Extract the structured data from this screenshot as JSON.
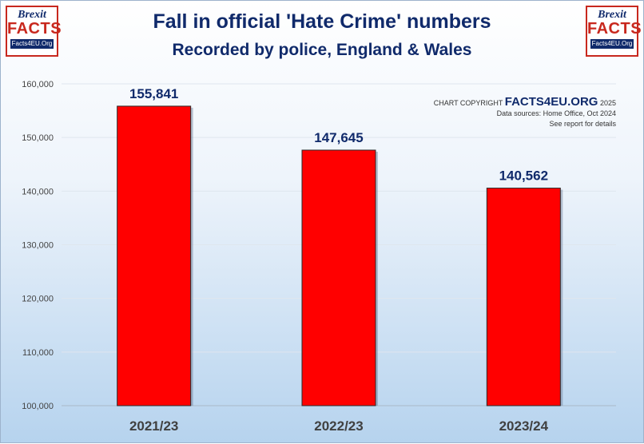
{
  "header": {
    "title": "Fall in official 'Hate Crime' numbers",
    "subtitle": "Recorded by police, England & Wales"
  },
  "logo": {
    "line1": "Brexit",
    "line2": "FACTS",
    "line3": "Facts4EU.Org"
  },
  "credit": {
    "prefix": "CHART COPYRIGHT",
    "brand": "FACTS4EU.ORG",
    "year": "2025",
    "sources": "Data sources: Home Office, Oct 2024",
    "note": "See report for details"
  },
  "colors": {
    "bar": "#ff0000",
    "title": "#102a6b"
  },
  "chart_data": {
    "type": "bar",
    "title": "Fall in official 'Hate Crime' numbers",
    "subtitle": "Recorded by police, England & Wales",
    "categories": [
      "2021/23",
      "2022/23",
      "2023/24"
    ],
    "values": [
      155841,
      147645,
      140562
    ],
    "value_labels": [
      "155,841",
      "147,645",
      "140,562"
    ],
    "ylim": [
      100000,
      160000
    ],
    "yticks": [
      100000,
      110000,
      120000,
      130000,
      140000,
      150000,
      160000
    ],
    "ytick_labels": [
      "100,000",
      "110,000",
      "120,000",
      "130,000",
      "140,000",
      "150,000",
      "160,000"
    ],
    "grid": true,
    "xlabel": "",
    "ylabel": ""
  }
}
